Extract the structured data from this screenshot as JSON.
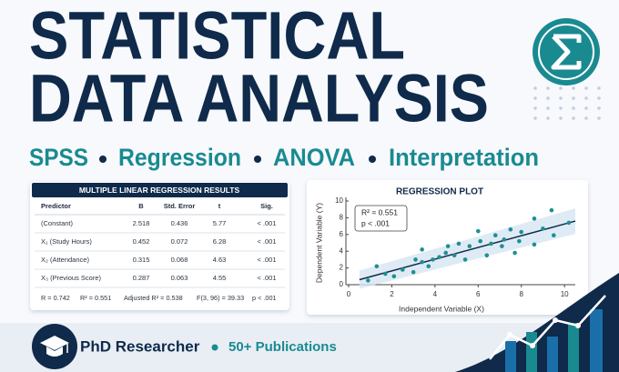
{
  "header": {
    "title_line1": "STATISTICAL",
    "title_line2": "DATA ANALYSIS",
    "subtitle_items": [
      "SPSS",
      "Regression",
      "ANOVA",
      "Interpretation"
    ]
  },
  "table": {
    "title": "MULTIPLE LINEAR REGRESSION RESULTS",
    "columns": [
      "Predictor",
      "B",
      "Std. Error",
      "t",
      "Sig."
    ],
    "rows": [
      [
        "(Constant)",
        "2.518",
        "0.436",
        "5.77",
        "< .001"
      ],
      [
        "X₁ (Study Hours)",
        "0.452",
        "0.072",
        "6.28",
        "< .001"
      ],
      [
        "X₂ (Attendance)",
        "0.315",
        "0.068",
        "4.63",
        "< .001"
      ],
      [
        "X₃ (Previous Score)",
        "0.287",
        "0.063",
        "4.55",
        "< .001"
      ]
    ],
    "footer": [
      "R = 0.742",
      "R² = 0.551",
      "Adjusted R² = 0.538",
      "F(3, 96) = 39.33",
      "p < .001"
    ]
  },
  "chart_data": {
    "type": "scatter",
    "title": "REGRESSION PLOT",
    "x_label": "Independent Variable (X)",
    "y_label": "Dependent Variable (Y)",
    "x": [
      0.9,
      1.3,
      1.7,
      2.1,
      2.5,
      3.0,
      3.1,
      3.4,
      3.4,
      3.7,
      3.9,
      4.2,
      4.5,
      4.6,
      4.9,
      5.1,
      5.4,
      5.6,
      6.0,
      6.1,
      6.4,
      6.6,
      6.8,
      7.1,
      7.2,
      7.5,
      7.7,
      7.9,
      8.0,
      8.6,
      8.6,
      9.0,
      9.4,
      9.5,
      10.2
    ],
    "y": [
      0.5,
      2.2,
      1.3,
      1.0,
      1.8,
      1.5,
      3.0,
      2.7,
      4.2,
      2.2,
      3.0,
      3.3,
      3.8,
      4.6,
      3.5,
      4.9,
      3.0,
      4.6,
      6.4,
      5.2,
      3.5,
      4.9,
      5.9,
      4.6,
      5.4,
      6.6,
      3.8,
      5.2,
      6.3,
      7.9,
      4.8,
      6.7,
      8.9,
      5.9,
      7.4
    ],
    "color": "#1f8f93",
    "fit_line": {
      "x": [
        0.5,
        10.5
      ],
      "y": [
        0.6,
        7.6
      ],
      "color": "#0f2a4a"
    },
    "xlim": [
      0,
      10.5
    ],
    "ylim": [
      0,
      10
    ],
    "xticks": [
      0,
      2,
      4,
      6,
      8,
      10
    ],
    "yticks": [
      0,
      2,
      4,
      6,
      8,
      10
    ],
    "annotations": [
      "R² = 0.551",
      "p < .001"
    ]
  },
  "footer": {
    "role": "PhD Researcher",
    "publications": "50+ Publications"
  }
}
